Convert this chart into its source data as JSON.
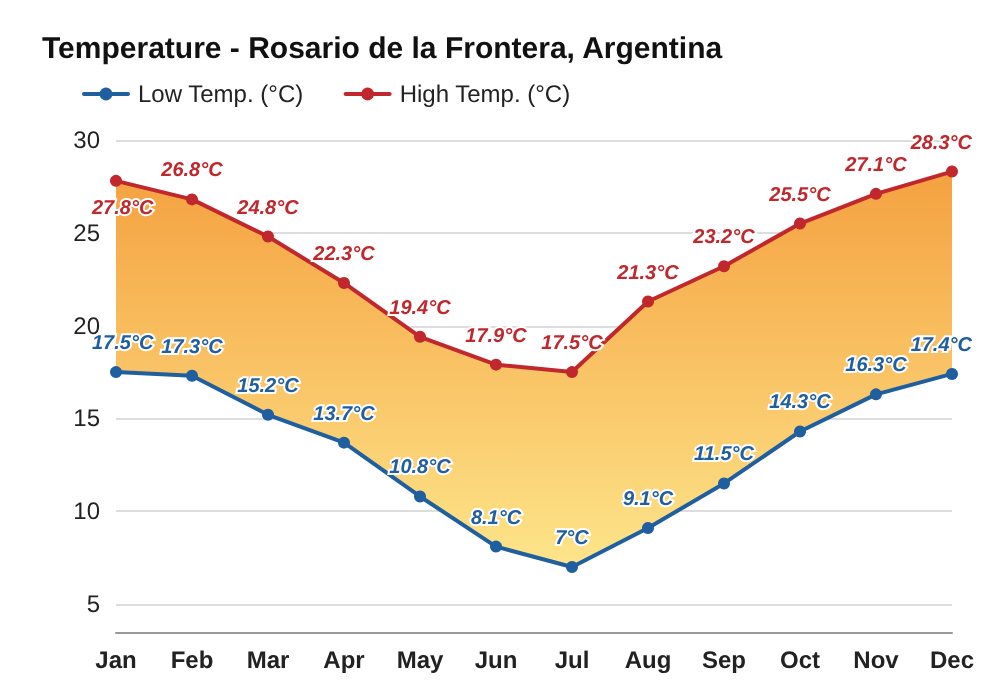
{
  "chart_data": {
    "type": "line",
    "title": "Temperature - Rosario de la Frontera, Argentina",
    "categories": [
      "Jan",
      "Feb",
      "Mar",
      "Apr",
      "May",
      "Jun",
      "Jul",
      "Aug",
      "Sep",
      "Oct",
      "Nov",
      "Dec"
    ],
    "series": [
      {
        "name": "Low Temp. (°C)",
        "color": "#1f5fa0",
        "values": [
          17.5,
          17.3,
          15.2,
          13.7,
          10.8,
          8.1,
          7,
          9.1,
          11.5,
          14.3,
          16.3,
          17.4
        ],
        "value_labels": [
          "17.5°C",
          "17.3°C",
          "15.2°C",
          "13.7°C",
          "10.8°C",
          "8.1°C",
          "7°C",
          "9.1°C",
          "11.5°C",
          "14.3°C",
          "16.3°C",
          "17.4°C"
        ]
      },
      {
        "name": "High Temp. (°C)",
        "color": "#c0282d",
        "values": [
          27.8,
          26.8,
          24.8,
          22.3,
          19.4,
          17.9,
          17.5,
          21.3,
          23.2,
          25.5,
          27.1,
          28.3
        ],
        "value_labels": [
          "27.8°C",
          "26.8°C",
          "24.8°C",
          "22.3°C",
          "19.4°C",
          "17.9°C",
          "17.5°C",
          "21.3°C",
          "23.2°C",
          "25.5°C",
          "27.1°C",
          "28.3°C"
        ]
      }
    ],
    "ylim": [
      3.5,
      30
    ],
    "yticks": [
      5,
      10,
      15,
      20,
      25,
      30
    ],
    "grid": "y",
    "legend": "top left",
    "marker": "circle",
    "line_style": "solid"
  }
}
